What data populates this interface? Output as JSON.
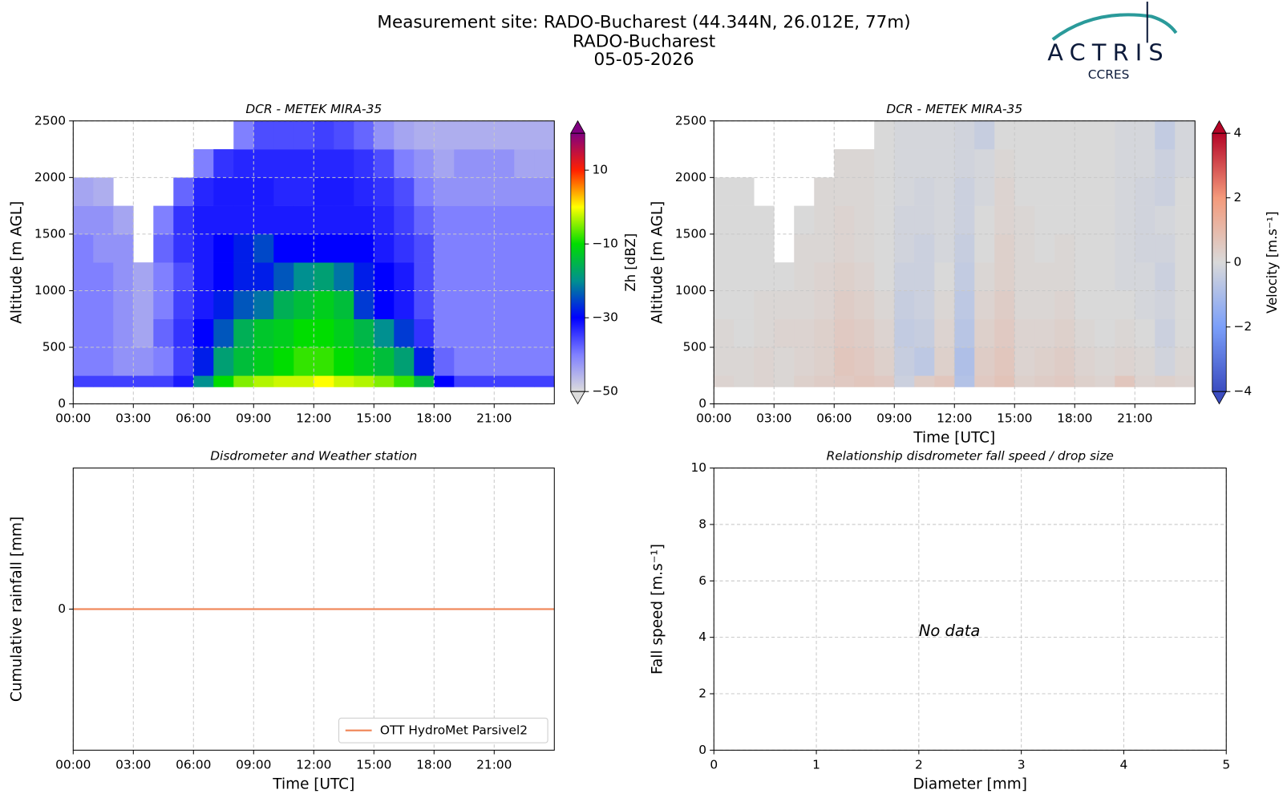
{
  "header": {
    "title": [
      "Measurement site: RADO-Bucharest (44.344N, 26.012E, 77m)",
      "RADO-Bucharest",
      "05-05-2026"
    ],
    "logo": {
      "name": "ACTRIS",
      "subtitle": "CCRES"
    }
  },
  "chart_data": [
    {
      "type": "heatmap",
      "title": "DCR - METEK MIRA-35",
      "ylabel": "Altitude [m AGL]",
      "x_edges": [
        0,
        1,
        2,
        3,
        4,
        5,
        6,
        7,
        8,
        9,
        10,
        11,
        12,
        13,
        14,
        15,
        16,
        17,
        18,
        19,
        20,
        21,
        22,
        23,
        24
      ],
      "y_edges": [
        150,
        250,
        500,
        750,
        1000,
        1250,
        1500,
        1750,
        2000,
        2250,
        2500
      ],
      "z": [
        [
          -35,
          -35,
          -35,
          -35,
          -35,
          -32,
          -20,
          -10,
          -5,
          -3,
          -2,
          -2,
          0,
          -2,
          -3,
          -5,
          -8,
          -15,
          -30,
          -35,
          -35,
          -35,
          -35,
          -35
        ],
        [
          -40,
          -40,
          -42,
          -42,
          -40,
          -35,
          -28,
          -18,
          -14,
          -12,
          -10,
          -8,
          -8,
          -10,
          -12,
          -14,
          -18,
          -28,
          -38,
          -40,
          -40,
          -40,
          -40,
          -40
        ],
        [
          -40,
          -40,
          -42,
          -44,
          -38,
          -34,
          -30,
          -24,
          -16,
          -13,
          -12,
          -10,
          -10,
          -12,
          -15,
          -20,
          -26,
          -34,
          -40,
          -40,
          -40,
          -40,
          -40,
          -40
        ],
        [
          -40,
          -40,
          -42,
          -44,
          -40,
          -35,
          -32,
          -28,
          -24,
          -22,
          -16,
          -14,
          -12,
          -14,
          -26,
          -30,
          -32,
          -36,
          -40,
          -40,
          -40,
          -40,
          -40,
          -40
        ],
        [
          -40,
          -40,
          -42,
          -44,
          -40,
          -36,
          -32,
          -30,
          -28,
          -28,
          -24,
          -20,
          -18,
          -22,
          -28,
          -30,
          -32,
          -36,
          -40,
          -40,
          -40,
          -40,
          -40,
          -40
        ],
        [
          -40,
          -42,
          -42,
          null,
          -38,
          -34,
          -32,
          -30,
          -28,
          -25,
          -30,
          -30,
          -30,
          -30,
          -30,
          -32,
          -34,
          -36,
          -40,
          -40,
          -40,
          -40,
          -40,
          -40
        ],
        [
          -42,
          -42,
          -44,
          null,
          -40,
          -34,
          -32,
          -32,
          -32,
          -32,
          -32,
          -32,
          -32,
          -32,
          -32,
          -33,
          -35,
          -38,
          -40,
          -40,
          -40,
          -40,
          -40,
          -40
        ],
        [
          -44,
          -45,
          null,
          null,
          null,
          -38,
          -33,
          -32,
          -32,
          -32,
          -33,
          -33,
          -32,
          -32,
          -33,
          -34,
          -36,
          -40,
          -42,
          -42,
          -42,
          -42,
          -42,
          -42
        ],
        [
          null,
          null,
          null,
          null,
          null,
          null,
          -40,
          -34,
          -33,
          -33,
          -33,
          -33,
          -33,
          -33,
          -34,
          -36,
          -40,
          -42,
          -44,
          -42,
          -42,
          -42,
          -44,
          -44
        ],
        [
          null,
          null,
          null,
          null,
          null,
          null,
          null,
          null,
          -40,
          -36,
          -36,
          -36,
          -35,
          -36,
          -38,
          -42,
          -44,
          -45,
          -45,
          -45,
          -45,
          -45,
          -45,
          -45
        ]
      ],
      "xlim": [
        0,
        24
      ],
      "ylim": [
        0,
        2500
      ],
      "xticks": [
        {
          "value": 0,
          "label": "00:00"
        },
        {
          "value": 3,
          "label": "03:00"
        },
        {
          "value": 6,
          "label": "06:00"
        },
        {
          "value": 9,
          "label": "09:00"
        },
        {
          "value": 12,
          "label": "12:00"
        },
        {
          "value": 15,
          "label": "15:00"
        },
        {
          "value": 18,
          "label": "18:00"
        },
        {
          "value": 21,
          "label": "21:00"
        }
      ],
      "yticks": [
        0,
        500,
        1000,
        1500,
        2000,
        2500
      ],
      "grid": true,
      "colorbar": {
        "label": "Zh [dBZ]",
        "lim": [
          -50,
          20
        ],
        "ticks": [
          {
            "value": -50,
            "label": "−50"
          },
          {
            "value": -30,
            "label": "−30"
          },
          {
            "value": -10,
            "label": "−10"
          },
          10
        ],
        "colors": [
          "#dcdcdc",
          "#8080ff",
          "#0000ff",
          "#009090",
          "#00dd00",
          "#ffff00",
          "#ff2000",
          "#800080"
        ],
        "extend": "both"
      }
    },
    {
      "type": "heatmap",
      "title": "DCR - METEK MIRA-35",
      "xlabel": "Time [UTC]",
      "ylabel": "Altitude [m AGL]",
      "x_edges": [
        0,
        1,
        2,
        3,
        4,
        5,
        6,
        7,
        8,
        9,
        10,
        11,
        12,
        13,
        14,
        15,
        16,
        17,
        18,
        19,
        20,
        21,
        22,
        23,
        24
      ],
      "y_edges": [
        150,
        250,
        500,
        750,
        1000,
        1250,
        1500,
        1750,
        2000,
        2250,
        2500
      ],
      "z": [
        [
          0.2,
          0.1,
          0.2,
          0.1,
          0.3,
          0.4,
          0.5,
          0.6,
          0.5,
          -0.3,
          0.4,
          0.6,
          -0.8,
          0.5,
          0.7,
          0.3,
          0.4,
          0.5,
          0.3,
          0.2,
          0.6,
          0.2,
          0.3,
          0.2
        ],
        [
          0.1,
          0.1,
          0.2,
          0.1,
          0.2,
          0.3,
          0.6,
          0.5,
          0.3,
          -0.4,
          -0.6,
          0.3,
          -0.9,
          0.4,
          0.6,
          0.2,
          0.3,
          0.4,
          0.2,
          0.1,
          0.2,
          0.1,
          -0.2,
          0.1
        ],
        [
          0.1,
          0,
          0.1,
          0.2,
          0.2,
          0.3,
          0.5,
          0.4,
          0.2,
          -0.5,
          -0.4,
          0.2,
          -0.7,
          0.3,
          0.5,
          0.2,
          0.2,
          0.3,
          0.1,
          0,
          0.1,
          0,
          -0.3,
          0
        ],
        [
          0,
          0,
          0.1,
          0.1,
          0.1,
          0.2,
          0.4,
          0.3,
          0.1,
          -0.4,
          -0.3,
          0.1,
          -0.6,
          0.2,
          0.4,
          0.1,
          0.1,
          0.2,
          0,
          0,
          0,
          -0.1,
          -0.2,
          0
        ],
        [
          0,
          0,
          0,
          0,
          0.1,
          0.2,
          0.3,
          0.2,
          0,
          -0.3,
          -0.3,
          0,
          -0.5,
          0.1,
          0.3,
          0.1,
          0.1,
          0.1,
          0,
          0,
          -0.1,
          -0.1,
          -0.3,
          0
        ],
        [
          0,
          0,
          0,
          null,
          0.1,
          0.1,
          0.2,
          0.1,
          0,
          -0.2,
          -0.3,
          -0.1,
          -0.4,
          0,
          0.3,
          0.1,
          0,
          0.1,
          0,
          0,
          -0.1,
          -0.2,
          -0.2,
          0
        ],
        [
          0,
          0,
          0,
          null,
          0,
          0.1,
          0.2,
          0.1,
          0,
          -0.2,
          -0.2,
          -0.1,
          -0.3,
          0,
          0.2,
          0.1,
          0,
          0,
          0,
          0,
          -0.1,
          -0.2,
          -0.1,
          0
        ],
        [
          0,
          0,
          null,
          null,
          null,
          0.1,
          0.1,
          0.1,
          0,
          -0.1,
          -0.2,
          -0.1,
          -0.3,
          -0.1,
          0.2,
          0,
          0,
          0,
          0,
          0,
          -0.1,
          -0.2,
          -0.3,
          0
        ],
        [
          null,
          null,
          null,
          null,
          null,
          null,
          0.1,
          0.1,
          0,
          -0.1,
          -0.1,
          -0.1,
          -0.2,
          -0.1,
          0.1,
          0,
          0,
          0,
          0,
          0,
          -0.1,
          -0.1,
          -0.3,
          -0.1
        ],
        [
          null,
          null,
          null,
          null,
          null,
          null,
          null,
          null,
          0,
          -0.1,
          -0.1,
          -0.1,
          -0.2,
          -0.4,
          0,
          0,
          0,
          0,
          0,
          0,
          -0.1,
          -0.1,
          -0.5,
          -0.1
        ]
      ],
      "xlim": [
        0,
        24
      ],
      "ylim": [
        0,
        2500
      ],
      "xticks": [
        {
          "value": 0,
          "label": "00:00"
        },
        {
          "value": 3,
          "label": "03:00"
        },
        {
          "value": 6,
          "label": "06:00"
        },
        {
          "value": 9,
          "label": "09:00"
        },
        {
          "value": 12,
          "label": "12:00"
        },
        {
          "value": 15,
          "label": "15:00"
        },
        {
          "value": 18,
          "label": "18:00"
        },
        {
          "value": 21,
          "label": "21:00"
        }
      ],
      "yticks": [
        0,
        500,
        1000,
        1500,
        2000,
        2500
      ],
      "grid": true,
      "colorbar": {
        "label": "Velocity [m.s⁻¹]",
        "lim": [
          -4,
          4
        ],
        "ticks": [
          {
            "value": -4,
            "label": "−4"
          },
          {
            "value": -2,
            "label": "−2"
          },
          0,
          2,
          4
        ],
        "colors": [
          "#3b4cc0",
          "#7b9ff9",
          "#d9d9d9",
          "#f49a7b",
          "#b40426"
        ],
        "extend": "both"
      }
    },
    {
      "type": "line",
      "title": "Disdrometer and Weather station",
      "xlabel": "Time [UTC]",
      "ylabel": "Cumulative rainfall [mm]",
      "x": [
        0,
        24
      ],
      "series": [
        {
          "name": "OTT HydroMet Parsivel2",
          "color": "#f08a5d",
          "values": [
            0,
            0
          ]
        }
      ],
      "xlim": [
        0,
        24
      ],
      "ylim": [
        -0.05,
        0.05
      ],
      "xticks": [
        {
          "value": 0,
          "label": "00:00"
        },
        {
          "value": 3,
          "label": "03:00"
        },
        {
          "value": 6,
          "label": "06:00"
        },
        {
          "value": 9,
          "label": "09:00"
        },
        {
          "value": 12,
          "label": "12:00"
        },
        {
          "value": 15,
          "label": "15:00"
        },
        {
          "value": 18,
          "label": "18:00"
        },
        {
          "value": 21,
          "label": "21:00"
        }
      ],
      "yticks": [
        0
      ],
      "grid": true,
      "legend": "lower right"
    },
    {
      "type": "scatter",
      "title": "Relationship disdrometer fall speed / drop size",
      "xlabel": "Diameter [mm]",
      "ylabel": "Fall speed [m.s⁻¹]",
      "xlim": [
        0,
        5
      ],
      "ylim": [
        0,
        10
      ],
      "xticks": [
        0,
        1,
        2,
        3,
        4,
        5
      ],
      "yticks": [
        0,
        2,
        4,
        6,
        8,
        10
      ],
      "grid": true,
      "annotation": "No data"
    }
  ]
}
